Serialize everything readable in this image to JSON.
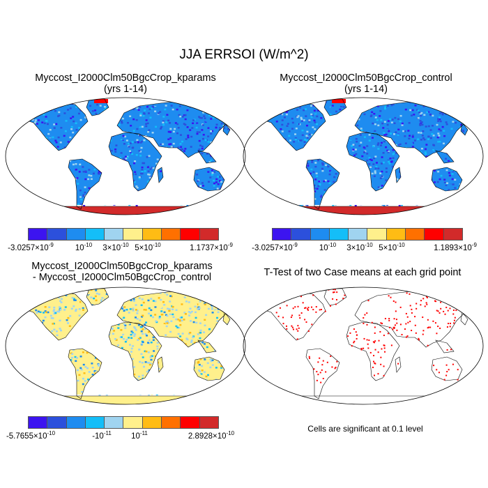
{
  "title": "JJA ERRSOI (W/m^2)",
  "panels": [
    {
      "title_line1": "Myccost_I2000Clm50BgcCrop_kparams",
      "title_line2": "(yrs 1-14)",
      "colorbar": [
        {
          "m": "-3.0257×10",
          "e": "-9"
        },
        {
          "m": "10",
          "e": "-10"
        },
        {
          "m": "3×10",
          "e": "-10"
        },
        {
          "m": "5×10",
          "e": "-10"
        },
        {
          "m": "1.1737×10",
          "e": "-9"
        }
      ]
    },
    {
      "title_line1": "Myccost_I2000Clm50BgcCrop_control",
      "title_line2": "(yrs 1-14)",
      "colorbar": [
        {
          "m": "-3.0257×10",
          "e": "-9"
        },
        {
          "m": "10",
          "e": "-10"
        },
        {
          "m": "3×10",
          "e": "-10"
        },
        {
          "m": "5×10",
          "e": "-10"
        },
        {
          "m": "1.1893×10",
          "e": "-9"
        }
      ]
    },
    {
      "title_line1": "Myccost_I2000Clm50BgcCrop_kparams",
      "title_line2": "- Myccost_I2000Clm50BgcCrop_control",
      "colorbar": [
        {
          "m": "-5.7655×10",
          "e": "-10"
        },
        {
          "m": "-10",
          "e": "-11"
        },
        {
          "m": "10",
          "e": "-11"
        },
        {
          "m": "2.8928×10",
          "e": "-10"
        }
      ]
    },
    {
      "title_line1": "T-Test of two Case means at each grid point",
      "note": "Cells are significant at 0.1 level"
    }
  ],
  "colors": [
    "#3c14f0",
    "#2c50dc",
    "#1e8cf0",
    "#14bef8",
    "#a0d4f0",
    "#fff08c",
    "#ffbc14",
    "#ff7000",
    "#ff0000",
    "#d22a2a"
  ],
  "significance_color": "#ff0000"
}
